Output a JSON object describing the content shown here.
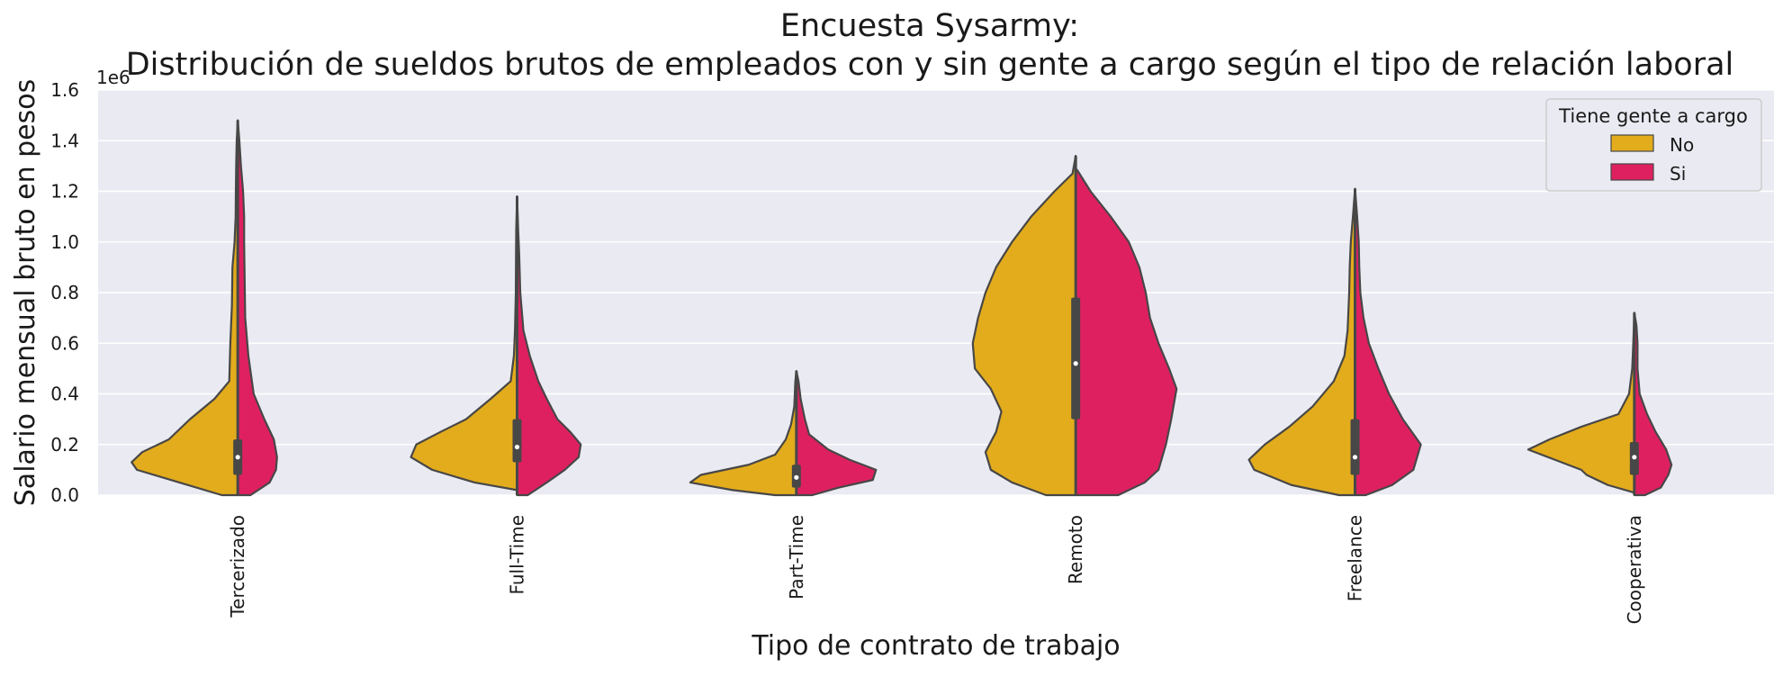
{
  "title_line1": "Encuesta Sysarmy:",
  "title_line2": "Distribución de sueldos brutos de empleados con y sin gente a cargo según el tipo de relación laboral",
  "colors": {
    "background": "#ffffff",
    "plot_bg": "#eaeaf2",
    "grid": "#ffffff",
    "outline": "#474747",
    "no": "#e3ac1c",
    "si": "#df2060"
  },
  "chart_data": {
    "type": "violin",
    "split": true,
    "title": "Encuesta Sysarmy:\nDistribución de sueldos brutos de empleados con y sin gente a cargo según el tipo de relación laboral",
    "xlabel": "Tipo de contrato de trabajo",
    "ylabel": "Salario mensual bruto en pesos",
    "y_offset_label": "1e6",
    "ylim": [
      0,
      1.6
    ],
    "y_ticks": [
      "0.0",
      "0.2",
      "0.4",
      "0.6",
      "0.8",
      "1.0",
      "1.2",
      "1.4",
      "1.6"
    ],
    "grid": true,
    "legend": {
      "title": "Tiene gente a cargo",
      "placement": "top-right",
      "entries": [
        {
          "label": "No",
          "color": "#e3ac1c"
        },
        {
          "label": "Si",
          "color": "#df2060"
        }
      ]
    },
    "categories": [
      "Tercerizado",
      "Full-Time",
      "Part-Time",
      "Remoto",
      "Freelance",
      "Cooperativa"
    ],
    "y_unit_note": "values in units of 1e6 pesos",
    "violins": [
      {
        "category": "Tercerizado",
        "no_profile": [
          [
            0,
            0.15
          ],
          [
            0.05,
            0.55
          ],
          [
            0.1,
            0.95
          ],
          [
            0.13,
            1.0
          ],
          [
            0.17,
            0.9
          ],
          [
            0.22,
            0.65
          ],
          [
            0.3,
            0.45
          ],
          [
            0.38,
            0.22
          ],
          [
            0.45,
            0.08
          ],
          [
            0.6,
            0.07
          ],
          [
            0.75,
            0.055
          ],
          [
            0.9,
            0.05
          ],
          [
            1.0,
            0.03
          ],
          [
            1.1,
            0.02
          ],
          [
            1.2,
            0.018
          ],
          [
            1.3,
            0.015
          ],
          [
            1.4,
            0.01
          ],
          [
            1.48,
            0.0
          ]
        ],
        "si_profile": [
          [
            0,
            0.12
          ],
          [
            0.05,
            0.3
          ],
          [
            0.1,
            0.36
          ],
          [
            0.15,
            0.37
          ],
          [
            0.22,
            0.34
          ],
          [
            0.3,
            0.25
          ],
          [
            0.4,
            0.15
          ],
          [
            0.55,
            0.1
          ],
          [
            0.7,
            0.07
          ],
          [
            0.85,
            0.065
          ],
          [
            1.0,
            0.06
          ],
          [
            1.1,
            0.06
          ],
          [
            1.2,
            0.05
          ],
          [
            1.3,
            0.03
          ],
          [
            1.4,
            0.015
          ],
          [
            1.48,
            0.0
          ]
        ],
        "box": {
          "q1": 0.08,
          "q3": 0.22,
          "median": 0.15,
          "whisker_low": 0.0,
          "whisker_high": 1.48
        }
      },
      {
        "category": "Full-Time",
        "no_profile": [
          [
            0.02,
            0.0
          ],
          [
            0.05,
            0.4
          ],
          [
            0.1,
            0.8
          ],
          [
            0.15,
            1.0
          ],
          [
            0.2,
            0.95
          ],
          [
            0.25,
            0.72
          ],
          [
            0.3,
            0.48
          ],
          [
            0.38,
            0.25
          ],
          [
            0.45,
            0.06
          ],
          [
            0.55,
            0.03
          ],
          [
            0.65,
            0.02
          ],
          [
            0.8,
            0.012
          ],
          [
            0.95,
            0.01
          ],
          [
            1.05,
            0.008
          ],
          [
            1.18,
            0.0
          ]
        ],
        "si_profile": [
          [
            0,
            0.1
          ],
          [
            0.05,
            0.28
          ],
          [
            0.1,
            0.45
          ],
          [
            0.15,
            0.58
          ],
          [
            0.2,
            0.6
          ],
          [
            0.25,
            0.5
          ],
          [
            0.3,
            0.38
          ],
          [
            0.38,
            0.28
          ],
          [
            0.45,
            0.2
          ],
          [
            0.55,
            0.12
          ],
          [
            0.65,
            0.06
          ],
          [
            0.8,
            0.03
          ],
          [
            0.95,
            0.02
          ],
          [
            1.05,
            0.01
          ],
          [
            1.18,
            0.0
          ]
        ],
        "box": {
          "q1": 0.13,
          "q3": 0.3,
          "median": 0.19,
          "whisker_low": 0.0,
          "whisker_high": 1.18
        }
      },
      {
        "category": "Part-Time",
        "no_profile": [
          [
            0,
            0.2
          ],
          [
            0.02,
            0.6
          ],
          [
            0.05,
            1.0
          ],
          [
            0.08,
            0.9
          ],
          [
            0.12,
            0.45
          ],
          [
            0.16,
            0.2
          ],
          [
            0.22,
            0.1
          ],
          [
            0.28,
            0.05
          ],
          [
            0.35,
            0.02
          ],
          [
            0.45,
            0.01
          ],
          [
            0.49,
            0.0
          ]
        ],
        "si_profile": [
          [
            0,
            0.15
          ],
          [
            0.03,
            0.4
          ],
          [
            0.06,
            0.72
          ],
          [
            0.1,
            0.75
          ],
          [
            0.14,
            0.5
          ],
          [
            0.18,
            0.3
          ],
          [
            0.24,
            0.12
          ],
          [
            0.3,
            0.08
          ],
          [
            0.38,
            0.04
          ],
          [
            0.45,
            0.02
          ],
          [
            0.49,
            0.0
          ]
        ],
        "box": {
          "q1": 0.03,
          "q3": 0.12,
          "median": 0.07,
          "whisker_low": 0.0,
          "whisker_high": 0.49
        }
      },
      {
        "category": "Remoto",
        "no_profile": [
          [
            0,
            0.28
          ],
          [
            0.05,
            0.6
          ],
          [
            0.1,
            0.8
          ],
          [
            0.17,
            0.85
          ],
          [
            0.25,
            0.75
          ],
          [
            0.33,
            0.7
          ],
          [
            0.42,
            0.8
          ],
          [
            0.5,
            0.95
          ],
          [
            0.6,
            0.97
          ],
          [
            0.7,
            0.92
          ],
          [
            0.8,
            0.85
          ],
          [
            0.9,
            0.75
          ],
          [
            1.0,
            0.6
          ],
          [
            1.1,
            0.42
          ],
          [
            1.2,
            0.2
          ],
          [
            1.27,
            0.03
          ],
          [
            1.34,
            0.0
          ]
        ],
        "si_profile": [
          [
            0,
            0.4
          ],
          [
            0.05,
            0.65
          ],
          [
            0.1,
            0.78
          ],
          [
            0.2,
            0.85
          ],
          [
            0.3,
            0.9
          ],
          [
            0.42,
            0.95
          ],
          [
            0.5,
            0.88
          ],
          [
            0.6,
            0.78
          ],
          [
            0.7,
            0.7
          ],
          [
            0.8,
            0.66
          ],
          [
            0.9,
            0.6
          ],
          [
            1.0,
            0.5
          ],
          [
            1.1,
            0.33
          ],
          [
            1.2,
            0.14
          ],
          [
            1.28,
            0.02
          ],
          [
            1.29,
            0.0
          ]
        ],
        "box": {
          "q1": 0.3,
          "q3": 0.78,
          "median": 0.52,
          "whisker_low": 0.0,
          "whisker_high": 1.34
        }
      },
      {
        "category": "Freelance",
        "no_profile": [
          [
            0,
            0.15
          ],
          [
            0.04,
            0.6
          ],
          [
            0.1,
            0.95
          ],
          [
            0.14,
            1.0
          ],
          [
            0.2,
            0.85
          ],
          [
            0.27,
            0.62
          ],
          [
            0.35,
            0.4
          ],
          [
            0.45,
            0.2
          ],
          [
            0.55,
            0.1
          ],
          [
            0.65,
            0.07
          ],
          [
            0.8,
            0.055
          ],
          [
            0.9,
            0.05
          ],
          [
            1.0,
            0.04
          ],
          [
            1.1,
            0.02
          ],
          [
            1.21,
            0.0
          ]
        ],
        "si_profile": [
          [
            0,
            0.1
          ],
          [
            0.04,
            0.35
          ],
          [
            0.1,
            0.55
          ],
          [
            0.2,
            0.62
          ],
          [
            0.3,
            0.45
          ],
          [
            0.4,
            0.32
          ],
          [
            0.5,
            0.22
          ],
          [
            0.6,
            0.13
          ],
          [
            0.7,
            0.08
          ],
          [
            0.8,
            0.05
          ],
          [
            0.9,
            0.04
          ],
          [
            1.0,
            0.035
          ],
          [
            1.1,
            0.02
          ],
          [
            1.21,
            0.0
          ]
        ],
        "box": {
          "q1": 0.08,
          "q3": 0.3,
          "median": 0.15,
          "whisker_low": 0.0,
          "whisker_high": 1.21
        }
      },
      {
        "category": "Cooperativa",
        "no_profile": [
          [
            0.01,
            0.0
          ],
          [
            0.04,
            0.25
          ],
          [
            0.08,
            0.45
          ],
          [
            0.1,
            0.5
          ],
          [
            0.14,
            0.75
          ],
          [
            0.18,
            1.0
          ],
          [
            0.22,
            0.8
          ],
          [
            0.27,
            0.5
          ],
          [
            0.32,
            0.15
          ],
          [
            0.4,
            0.05
          ],
          [
            0.5,
            0.02
          ],
          [
            0.6,
            0.01
          ],
          [
            0.72,
            0.0
          ]
        ],
        "si_profile": [
          [
            0,
            0.1
          ],
          [
            0.03,
            0.25
          ],
          [
            0.08,
            0.32
          ],
          [
            0.12,
            0.35
          ],
          [
            0.18,
            0.3
          ],
          [
            0.25,
            0.2
          ],
          [
            0.32,
            0.12
          ],
          [
            0.4,
            0.05
          ],
          [
            0.5,
            0.03
          ],
          [
            0.6,
            0.03
          ],
          [
            0.67,
            0.02
          ],
          [
            0.72,
            0.0
          ]
        ],
        "box": {
          "q1": 0.08,
          "q3": 0.21,
          "median": 0.15,
          "whisker_low": 0.0,
          "whisker_high": 0.72
        }
      }
    ]
  }
}
